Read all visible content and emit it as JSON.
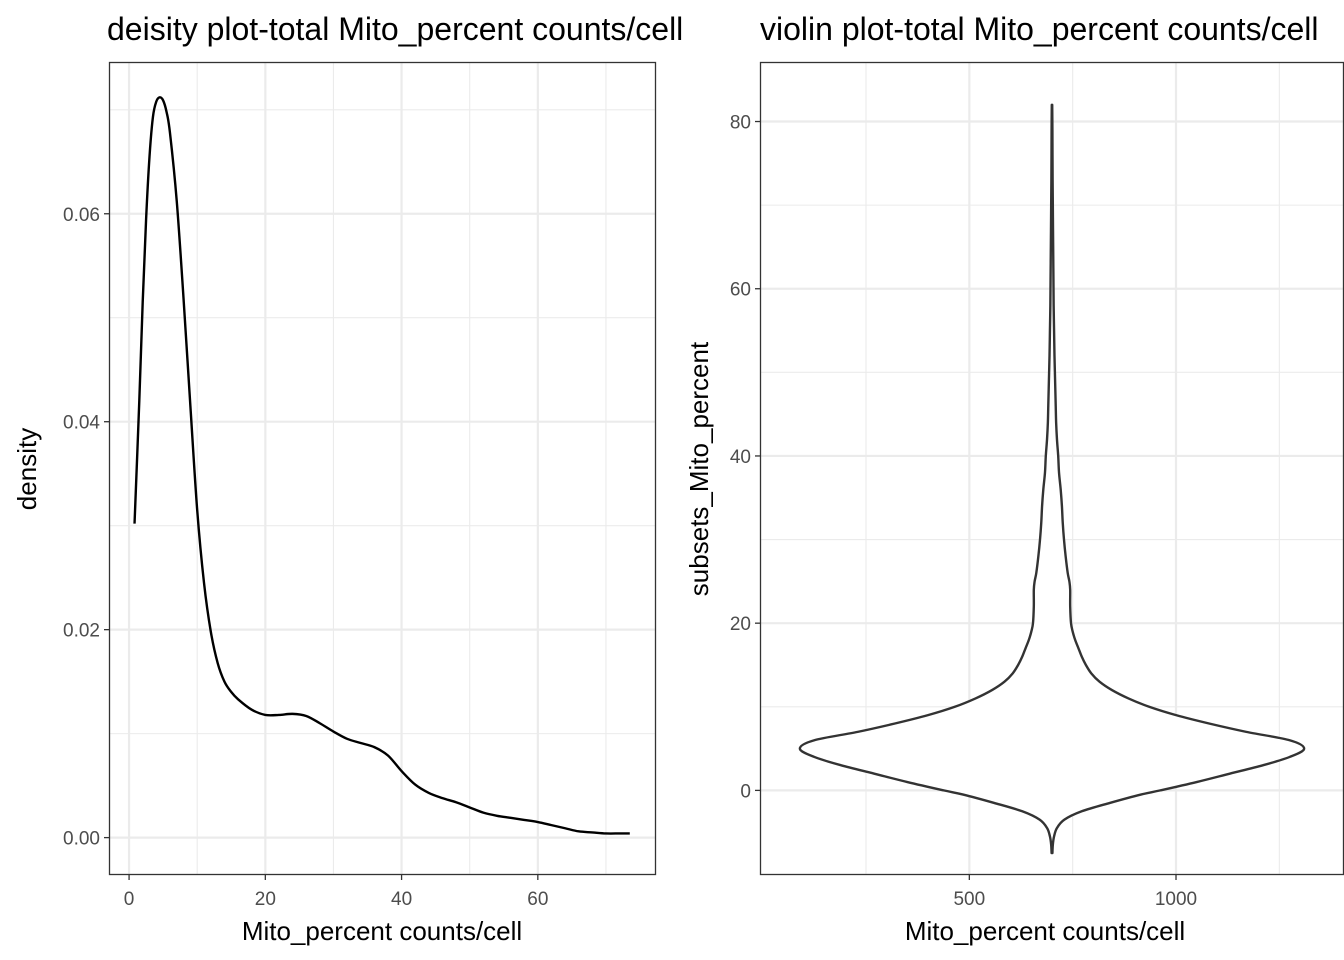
{
  "chart_data": [
    {
      "type": "area",
      "title": "deisity plot-total Mito_percent counts/cell",
      "xlabel": "Mito_percent counts/cell",
      "ylabel": "density",
      "xlim": [
        -2.8,
        77.2
      ],
      "ylim": [
        -0.0035,
        0.0745
      ],
      "x_ticks": [
        0,
        20,
        40,
        60
      ],
      "x_tick_labels": [
        "0",
        "20",
        "40",
        "60"
      ],
      "y_ticks": [
        0.0,
        0.02,
        0.04,
        0.06
      ],
      "y_tick_labels": [
        "0.00",
        "0.02",
        "0.04",
        "0.06"
      ],
      "grid": true,
      "series": [
        {
          "x": [
            0.8,
            1.5,
            2.0,
            2.5,
            3.0,
            3.5,
            4.0,
            4.5,
            5.0,
            5.5,
            6.0,
            7.0,
            8.0,
            9.0,
            10.0,
            11.0,
            12.0,
            13.0,
            14.0,
            15.0,
            16.0,
            18.0,
            20.0,
            22.0,
            24.0,
            26.0,
            28.0,
            30.0,
            32.0,
            34.0,
            36.0,
            38.0,
            40.0,
            42.0,
            44.0,
            46.0,
            48.0,
            50.0,
            52.0,
            54.0,
            56.0,
            58.0,
            60.0,
            62.0,
            64.0,
            66.0,
            68.0,
            70.0,
            72.0,
            73.5
          ],
          "y": [
            0.0302,
            0.042,
            0.0515,
            0.0595,
            0.0655,
            0.0693,
            0.0708,
            0.0712,
            0.0709,
            0.0698,
            0.0678,
            0.0612,
            0.0518,
            0.0415,
            0.0315,
            0.0245,
            0.0198,
            0.0168,
            0.015,
            0.014,
            0.0133,
            0.0123,
            0.0118,
            0.0118,
            0.0119,
            0.0117,
            0.011,
            0.0102,
            0.0095,
            0.0091,
            0.0087,
            0.0079,
            0.0064,
            0.0051,
            0.0043,
            0.0038,
            0.0034,
            0.0029,
            0.0024,
            0.0021,
            0.0019,
            0.0017,
            0.0015,
            0.0012,
            0.0009,
            0.0006,
            0.0005,
            0.0004,
            0.0004,
            0.0004
          ]
        }
      ]
    },
    {
      "type": "violin",
      "title": "violin plot-total Mito_percent counts/cell",
      "xlabel": "Mito_percent counts/cell",
      "ylabel": "subsets_Mito_percent",
      "xlim": [
        -4.0,
        1404.0
      ],
      "ylim": [
        -10.0,
        87.0
      ],
      "x_ticks": [
        500,
        1000
      ],
      "x_tick_labels": [
        "500",
        "1000"
      ],
      "y_ticks": [
        0,
        20,
        40,
        60,
        80
      ],
      "y_tick_labels": [
        "0",
        "20",
        "40",
        "60",
        "80"
      ],
      "grid": true,
      "center_x": 700,
      "violin": {
        "y": [
          -7.5,
          -6.5,
          -5.5,
          -4.5,
          -3.5,
          -2.5,
          -1.5,
          -0.5,
          0.0,
          1.0,
          2.0,
          3.0,
          4.0,
          5.0,
          6.0,
          7.0,
          8.0,
          9.0,
          10.0,
          11.0,
          12.0,
          13.0,
          14.0,
          15.0,
          16.0,
          17.0,
          18.0,
          19.0,
          20.0,
          22.0,
          24.0,
          25.0,
          26.0,
          28.0,
          30.0,
          32.0,
          34.0,
          36.0,
          38.0,
          40.0,
          42.0,
          44.0,
          46.0,
          48.0,
          50.0,
          52.0,
          55.0,
          58.0,
          61.0,
          64.0,
          67.0,
          70.0,
          73.0,
          76.0,
          79.0,
          82.0
        ],
        "half_width": [
          1,
          2,
          5,
          12,
          30,
          72,
          140,
          215,
          262,
          350,
          430,
          510,
          575,
          610,
          575,
          470,
          380,
          300,
          235,
          185,
          145,
          115,
          95,
          82,
          72,
          64,
          56,
          50,
          46,
          44,
          44,
          42,
          38,
          33,
          29,
          26,
          24,
          21,
          17,
          15,
          12,
          10,
          9,
          8,
          7,
          6,
          5,
          4,
          3.5,
          3,
          2.5,
          2,
          1.5,
          1.2,
          1,
          0.5
        ]
      }
    }
  ]
}
